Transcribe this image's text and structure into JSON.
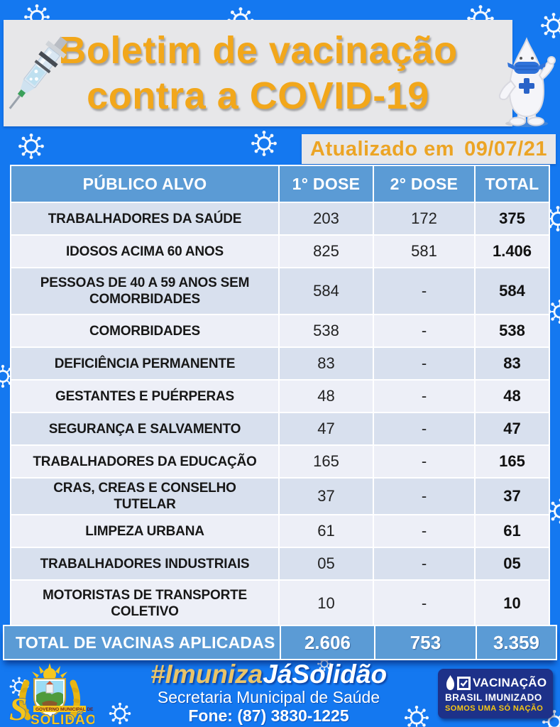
{
  "colors": {
    "background": "#1478f0",
    "banner_gray": "#e7e7e9",
    "title_orange": "#f2a71b",
    "updated_orange": "#eca424",
    "table_header_blue": "#5b9bd5",
    "row_shaded": "#d8e0ee",
    "row_light": "#edeff7",
    "badge_navy": "#1d3189",
    "badge_yellow": "#f8c712"
  },
  "header": {
    "title_line1": "Boletim de vacinação",
    "title_line2": "contra a COVID-19",
    "updated_label": "Atualizado em",
    "updated_date": "09/07/21"
  },
  "table": {
    "columns": [
      "PÚBLICO ALVO",
      "1° DOSE",
      "2° DOSE",
      "TOTAL"
    ],
    "rows": [
      {
        "label": "TRABALHADORES DA SAÚDE",
        "dose1": "203",
        "dose2": "172",
        "total": "375"
      },
      {
        "label": "IDOSOS ACIMA 60 ANOS",
        "dose1": "825",
        "dose2": "581",
        "total": "1.406"
      },
      {
        "label": "PESSOAS DE 40 A 59 ANOS SEM COMORBIDADES",
        "dose1": "584",
        "dose2": "-",
        "total": "584"
      },
      {
        "label": "COMORBIDADES",
        "dose1": "538",
        "dose2": "-",
        "total": "538"
      },
      {
        "label": "DEFICIÊNCIA PERMANENTE",
        "dose1": "83",
        "dose2": "-",
        "total": "83"
      },
      {
        "label": "GESTANTES E PUÉRPERAS",
        "dose1": "48",
        "dose2": "-",
        "total": "48"
      },
      {
        "label": "SEGURANÇA E SALVAMENTO",
        "dose1": "47",
        "dose2": "-",
        "total": "47"
      },
      {
        "label": "TRABALHADORES DA EDUCAÇÃO",
        "dose1": "165",
        "dose2": "-",
        "total": "165"
      },
      {
        "label": "CRAS, CREAS E CONSELHO TUTELAR",
        "dose1": "37",
        "dose2": "-",
        "total": "37"
      },
      {
        "label": "LIMPEZA URBANA",
        "dose1": "61",
        "dose2": "-",
        "total": "61"
      },
      {
        "label": "TRABALHADORES INDUSTRIAIS",
        "dose1": "05",
        "dose2": "-",
        "total": "05"
      },
      {
        "label": "MOTORISTAS DE TRANSPORTE COLETIVO",
        "dose1": "10",
        "dose2": "-",
        "total": "10"
      }
    ],
    "total_row": {
      "label": "TOTAL DE VACINAS APLICADAS",
      "dose1": "2.606",
      "dose2": "753",
      "total": "3.359"
    }
  },
  "footer": {
    "logo": {
      "small_text": "GOVERNO MUNICIPAL DE",
      "name": "SOLIDÃO"
    },
    "tagline_part1": "#Imuniza",
    "tagline_part2": "JáSolidão",
    "secretariat": "Secretaria Municipal de Saúde",
    "phone": "Fone: (87) 3830-1225",
    "badge": {
      "line1": "VACINAÇÃO",
      "line2": "BRASIL IMUNIZADO",
      "line3": "SOMOS UMA SÓ NAÇÃO"
    }
  }
}
